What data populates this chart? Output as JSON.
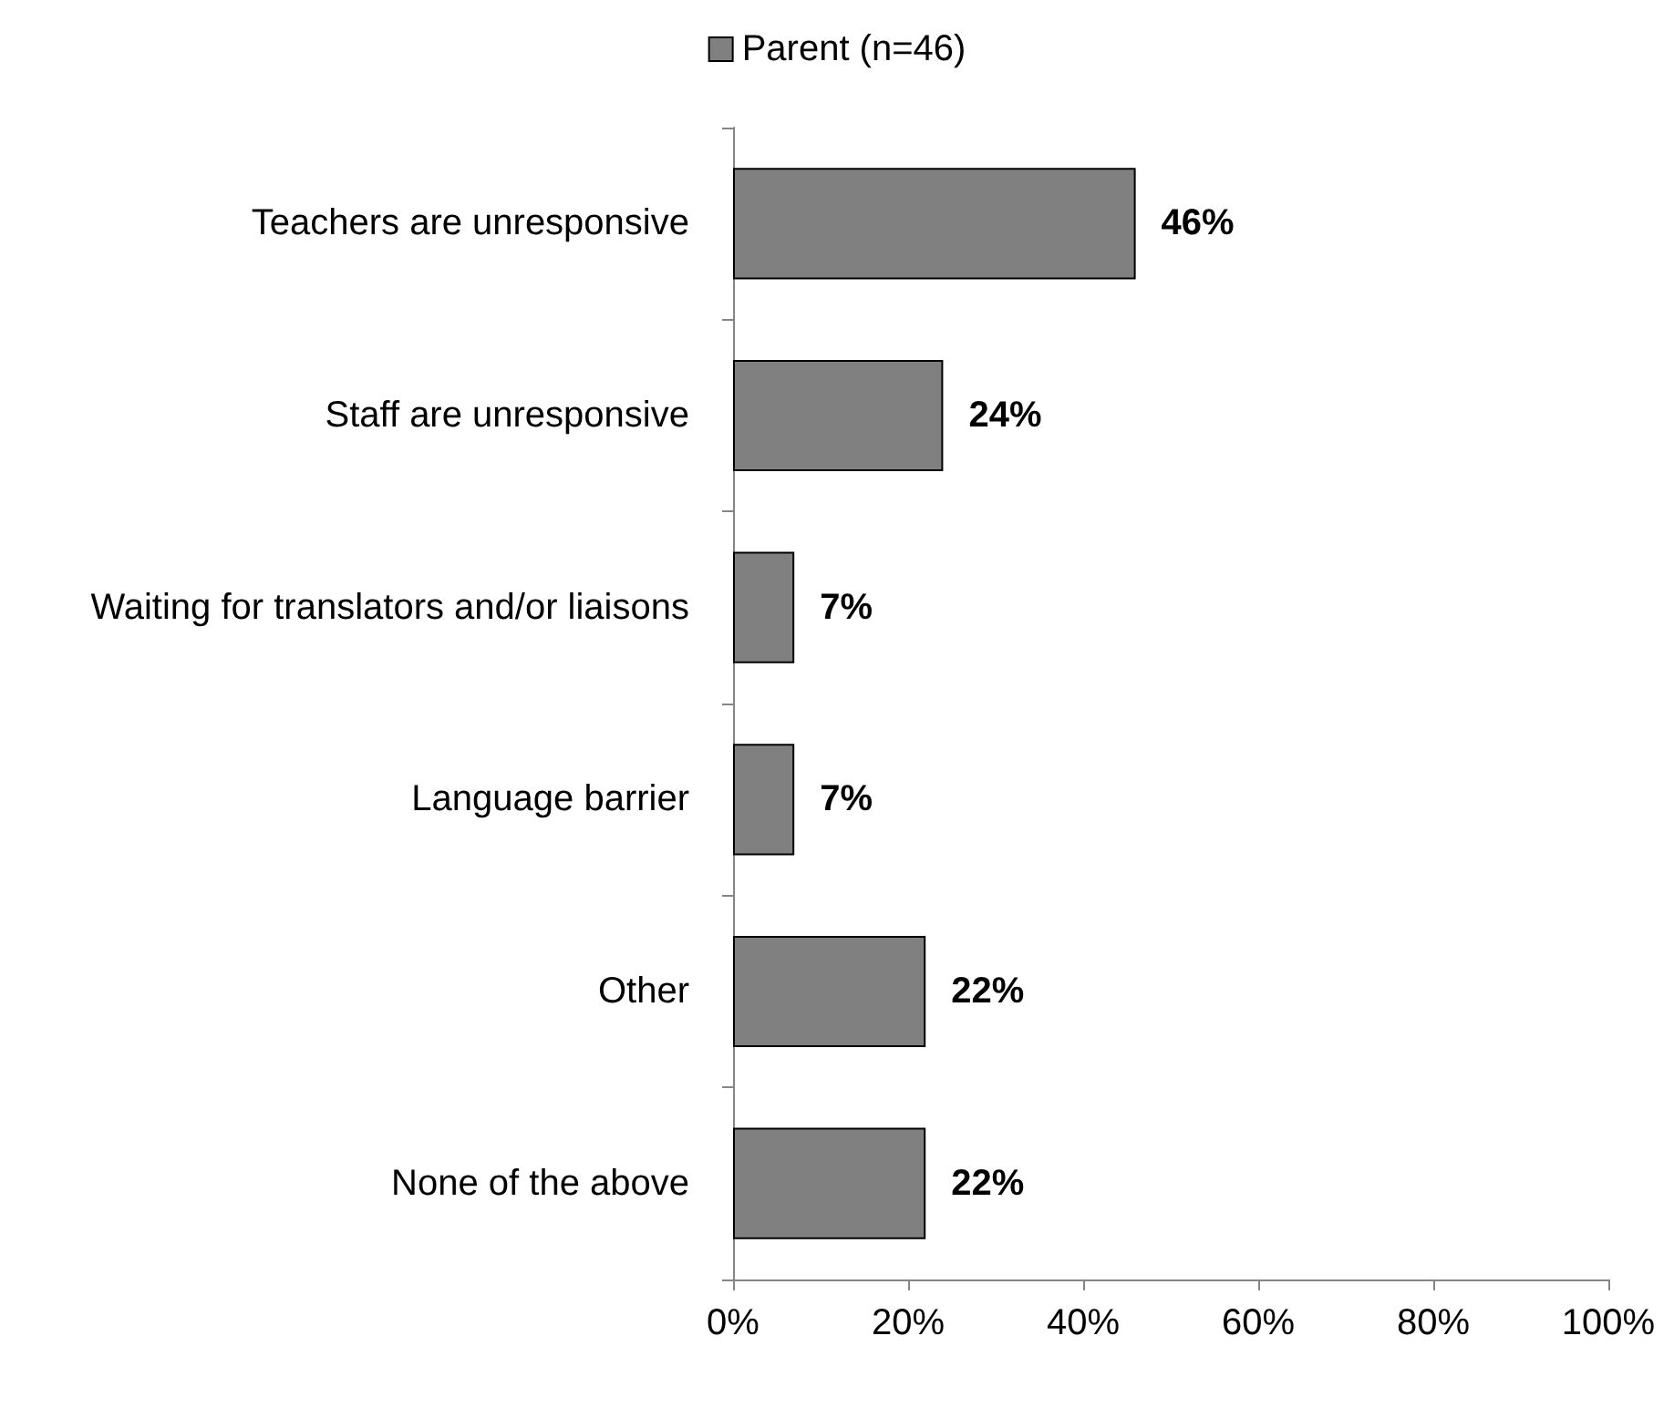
{
  "chart_data": {
    "type": "bar",
    "orientation": "horizontal",
    "categories": [
      "Teachers are unresponsive",
      "Staff are unresponsive",
      "Waiting for translators and/or liaisons",
      "Language barrier",
      "Other",
      "None of the above"
    ],
    "series": [
      {
        "name": "Parent (n=46)",
        "color": "#808080",
        "values": [
          46,
          24,
          7,
          7,
          22,
          22
        ],
        "value_labels": [
          "46%",
          "24%",
          "7%",
          "7%",
          "22%",
          "22%"
        ]
      }
    ],
    "xlim": [
      0,
      100
    ],
    "xticks": [
      {
        "value": 0,
        "label": "0%"
      },
      {
        "value": 20,
        "label": "20%"
      },
      {
        "value": 40,
        "label": "40%"
      },
      {
        "value": 60,
        "label": "60%"
      },
      {
        "value": 80,
        "label": "80%"
      },
      {
        "value": 100,
        "label": "100%"
      }
    ],
    "grid": false,
    "legend": "top"
  }
}
